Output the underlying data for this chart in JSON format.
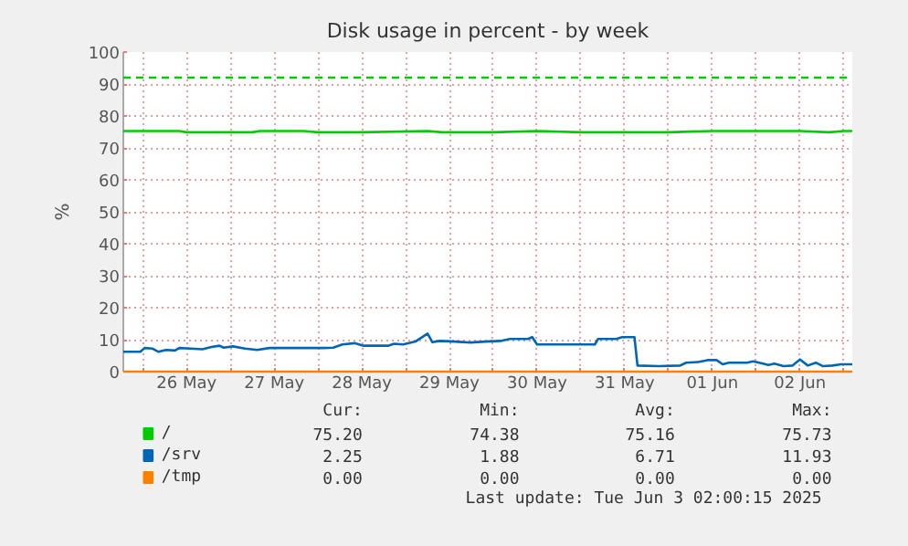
{
  "chart_data": {
    "type": "line",
    "title": "Disk usage in percent - by week",
    "ylabel": "%",
    "xlim": [
      "2025-05-25T18:40",
      "2025-06-03T02:20"
    ],
    "xticks": [
      {
        "value": "2025-05-26T00:00",
        "label": null
      },
      {
        "value": "2025-05-26T12:00",
        "label": "26 May"
      },
      {
        "value": "2025-05-27T00:00",
        "label": null
      },
      {
        "value": "2025-05-27T12:00",
        "label": "27 May"
      },
      {
        "value": "2025-05-28T00:00",
        "label": null
      },
      {
        "value": "2025-05-28T12:00",
        "label": "28 May"
      },
      {
        "value": "2025-05-29T00:00",
        "label": null
      },
      {
        "value": "2025-05-29T12:00",
        "label": "29 May"
      },
      {
        "value": "2025-05-30T00:00",
        "label": null
      },
      {
        "value": "2025-05-30T12:00",
        "label": "30 May"
      },
      {
        "value": "2025-05-31T00:00",
        "label": null
      },
      {
        "value": "2025-05-31T12:00",
        "label": "31 May"
      },
      {
        "value": "2025-06-01T00:00",
        "label": null
      },
      {
        "value": "2025-06-01T12:00",
        "label": "01 Jun"
      },
      {
        "value": "2025-06-02T00:00",
        "label": null
      },
      {
        "value": "2025-06-02T12:00",
        "label": "02 Jun"
      },
      {
        "value": "2025-06-03T00:00",
        "label": null
      }
    ],
    "ylim": [
      0,
      100
    ],
    "yticks": [
      0,
      10,
      20,
      30,
      40,
      50,
      60,
      70,
      80,
      90,
      100
    ],
    "grid": true,
    "legend": "bottom left",
    "line_style": "solid",
    "marker": "none",
    "ref_lines": [
      {
        "axis": "y",
        "value": 92,
        "label": null,
        "color": "#00cc00",
        "line_style": "dashed"
      }
    ],
    "series": [
      {
        "name": "/",
        "color": "#00cc00",
        "x": [
          "2025-05-25T18:40",
          "2025-05-26T10:00",
          "2025-05-26T12:00",
          "2025-05-27T06:00",
          "2025-05-27T08:00",
          "2025-05-27T20:00",
          "2025-05-28T00:00",
          "2025-05-28T12:00",
          "2025-05-29T06:00",
          "2025-05-29T10:00",
          "2025-05-30T00:00",
          "2025-05-30T12:00",
          "2025-05-31T00:00",
          "2025-05-31T12:00",
          "2025-06-01T00:00",
          "2025-06-01T12:00",
          "2025-06-02T12:00",
          "2025-06-02T20:00",
          "2025-06-03T00:00",
          "2025-06-03T02:20"
        ],
        "values": [
          75.3,
          75.3,
          74.9,
          74.9,
          75.3,
          75.3,
          74.9,
          74.9,
          75.3,
          74.9,
          74.9,
          75.3,
          74.9,
          74.9,
          74.9,
          75.3,
          75.3,
          74.9,
          75.3,
          75.3
        ]
      },
      {
        "name": "/srv",
        "color": "#0066b3",
        "x": [
          "2025-05-25T18:40",
          "2025-05-25T23:20",
          "2025-05-26T00:30",
          "2025-05-26T02:40",
          "2025-05-26T04:20",
          "2025-05-26T06:20",
          "2025-05-26T08:50",
          "2025-05-26T10:00",
          "2025-05-26T13:00",
          "2025-05-26T16:20",
          "2025-05-26T18:50",
          "2025-05-26T21:00",
          "2025-05-26T22:10",
          "2025-05-27T00:40",
          "2025-05-27T04:00",
          "2025-05-27T07:20",
          "2025-05-27T10:40",
          "2025-05-27T20:40",
          "2025-05-28T01:40",
          "2025-05-28T04:10",
          "2025-05-28T06:40",
          "2025-05-28T10:00",
          "2025-05-28T12:30",
          "2025-05-28T19:10",
          "2025-05-28T20:50",
          "2025-05-28T23:20",
          "2025-05-29T02:40",
          "2025-05-29T06:00",
          "2025-05-29T07:20",
          "2025-05-29T09:20",
          "2025-05-29T13:30",
          "2025-05-29T17:40",
          "2025-05-29T21:50",
          "2025-05-30T02:00",
          "2025-05-30T04:30",
          "2025-05-30T09:30",
          "2025-05-30T10:40",
          "2025-05-30T12:00",
          "2025-05-31T03:50",
          "2025-05-31T04:40",
          "2025-05-31T09:40",
          "2025-05-31T11:20",
          "2025-05-31T14:40",
          "2025-05-31T15:30",
          "2025-05-31T21:20",
          "2025-06-01T03:10",
          "2025-06-01T04:50",
          "2025-06-01T08:10",
          "2025-06-01T10:40",
          "2025-06-01T13:10",
          "2025-06-01T14:50",
          "2025-06-01T16:30",
          "2025-06-01T21:30",
          "2025-06-01T23:10",
          "2025-06-02T01:40",
          "2025-06-02T03:20",
          "2025-06-02T05:00",
          "2025-06-02T07:30",
          "2025-06-02T10:00",
          "2025-06-02T12:00",
          "2025-06-02T14:10",
          "2025-06-02T16:20",
          "2025-06-02T18:20",
          "2025-06-02T20:50",
          "2025-06-02T23:20",
          "2025-06-03T02:20"
        ],
        "values": [
          6.2,
          6.2,
          7.4,
          7.2,
          6.2,
          6.8,
          6.6,
          7.4,
          7.2,
          7.0,
          7.7,
          8.1,
          7.5,
          7.9,
          7.2,
          6.8,
          7.4,
          7.4,
          7.4,
          7.5,
          8.5,
          8.9,
          8.1,
          8.1,
          8.7,
          8.5,
          9.4,
          11.9,
          9.2,
          9.6,
          9.4,
          9.1,
          9.4,
          9.6,
          10.2,
          10.2,
          10.8,
          8.5,
          8.5,
          10.2,
          10.2,
          10.8,
          10.8,
          1.9,
          1.7,
          1.9,
          2.8,
          3.0,
          3.6,
          3.6,
          2.3,
          2.8,
          2.8,
          3.2,
          2.6,
          2.1,
          2.5,
          1.7,
          1.9,
          3.8,
          1.9,
          2.8,
          1.7,
          1.9,
          2.3,
          2.3
        ]
      },
      {
        "name": "/tmp",
        "color": "#ff8000",
        "x": [
          "2025-05-25T18:40",
          "2025-06-03T02:20"
        ],
        "values": [
          0,
          0
        ]
      }
    ],
    "annotations": [
      "Cur:",
      "Min:",
      "Avg:",
      "Max:",
      "75.20",
      "74.38",
      "75.16",
      "75.73",
      "2.25",
      "1.88",
      "6.71",
      "11.93",
      "0.00",
      "0.00",
      "0.00",
      "0.00",
      "Last update: Tue Jun  3 02:00:15 2025"
    ]
  }
}
